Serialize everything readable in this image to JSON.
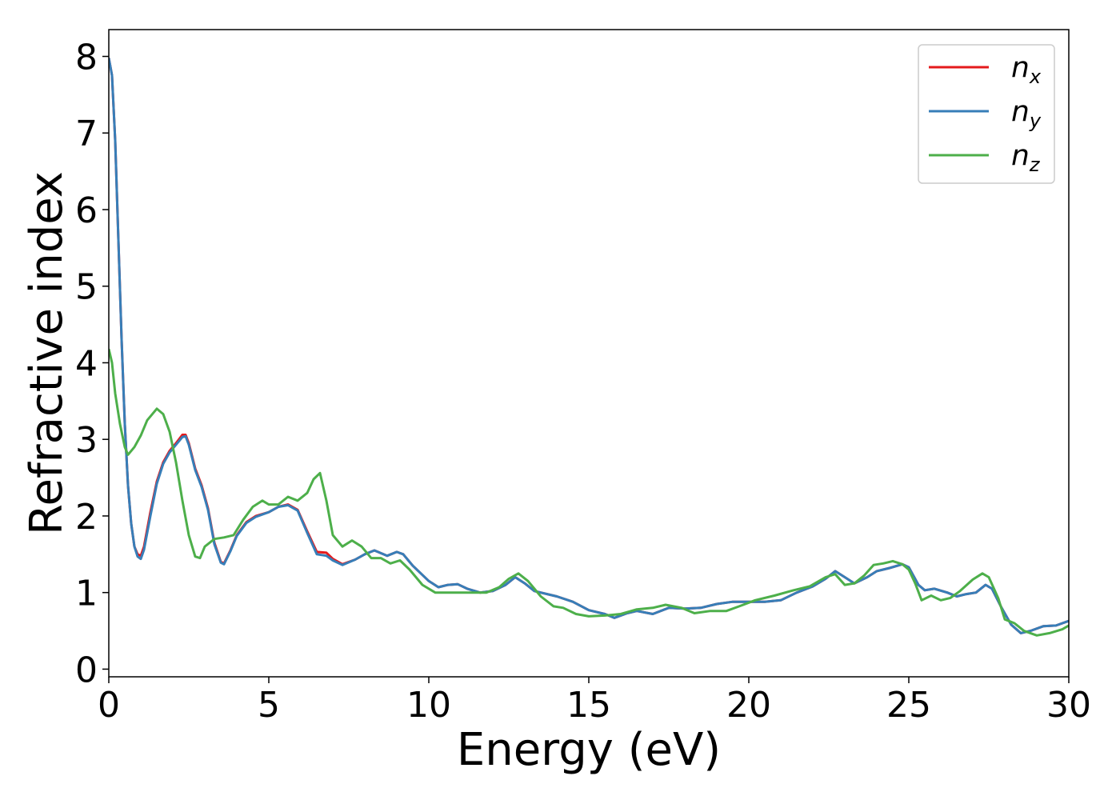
{
  "chart_data": {
    "type": "line",
    "xlabel": "Energy (eV)",
    "ylabel": "Refractive index",
    "xlim": [
      0,
      30
    ],
    "ylim": [
      -0.1,
      8.35
    ],
    "xticks": [
      0,
      5,
      10,
      15,
      20,
      25,
      30
    ],
    "xtick_labels": [
      "0",
      "5",
      "10",
      "15",
      "20",
      "25",
      "30"
    ],
    "yticks": [
      0,
      1,
      2,
      3,
      4,
      5,
      6,
      7,
      8
    ],
    "ytick_labels": [
      "0",
      "1",
      "2",
      "3",
      "4",
      "5",
      "6",
      "7",
      "8"
    ],
    "grid": false,
    "legend_position": "top-right",
    "series": [
      {
        "name": "n",
        "subscript": "x",
        "color": "#e41a1c",
        "points": [
          [
            0,
            7.98
          ],
          [
            0.1,
            7.75
          ],
          [
            0.2,
            6.9
          ],
          [
            0.3,
            5.6
          ],
          [
            0.4,
            4.3
          ],
          [
            0.5,
            3.2
          ],
          [
            0.6,
            2.4
          ],
          [
            0.7,
            1.9
          ],
          [
            0.8,
            1.6
          ],
          [
            0.9,
            1.5
          ],
          [
            1.0,
            1.48
          ],
          [
            1.1,
            1.6
          ],
          [
            1.3,
            2.05
          ],
          [
            1.5,
            2.45
          ],
          [
            1.7,
            2.7
          ],
          [
            1.9,
            2.85
          ],
          [
            2.1,
            2.95
          ],
          [
            2.3,
            3.06
          ],
          [
            2.4,
            3.06
          ],
          [
            2.5,
            2.95
          ],
          [
            2.7,
            2.62
          ],
          [
            2.9,
            2.4
          ],
          [
            3.1,
            2.1
          ],
          [
            3.3,
            1.65
          ],
          [
            3.5,
            1.4
          ],
          [
            3.6,
            1.38
          ],
          [
            3.8,
            1.55
          ],
          [
            4.0,
            1.75
          ],
          [
            4.3,
            1.92
          ],
          [
            4.6,
            2.0
          ],
          [
            5.0,
            2.05
          ],
          [
            5.3,
            2.12
          ],
          [
            5.6,
            2.15
          ],
          [
            5.9,
            2.08
          ],
          [
            6.2,
            1.8
          ],
          [
            6.5,
            1.53
          ],
          [
            6.8,
            1.52
          ],
          [
            7.0,
            1.44
          ],
          [
            7.3,
            1.37
          ],
          [
            7.7,
            1.43
          ],
          [
            8.0,
            1.5
          ],
          [
            8.3,
            1.55
          ],
          [
            8.7,
            1.48
          ],
          [
            9.0,
            1.53
          ],
          [
            9.2,
            1.5
          ],
          [
            9.5,
            1.35
          ],
          [
            10.0,
            1.15
          ],
          [
            10.3,
            1.07
          ],
          [
            10.6,
            1.1
          ],
          [
            10.9,
            1.11
          ],
          [
            11.2,
            1.05
          ],
          [
            11.6,
            1.0
          ],
          [
            12.0,
            1.02
          ],
          [
            12.4,
            1.1
          ],
          [
            12.7,
            1.2
          ],
          [
            13.0,
            1.12
          ],
          [
            13.3,
            1.02
          ],
          [
            14.0,
            0.95
          ],
          [
            14.5,
            0.88
          ],
          [
            15.0,
            0.77
          ],
          [
            15.5,
            0.72
          ],
          [
            15.8,
            0.67
          ],
          [
            16.2,
            0.73
          ],
          [
            16.5,
            0.76
          ],
          [
            17.0,
            0.72
          ],
          [
            17.5,
            0.8
          ],
          [
            18.0,
            0.79
          ],
          [
            18.5,
            0.8
          ],
          [
            19.0,
            0.85
          ],
          [
            19.5,
            0.88
          ],
          [
            20.0,
            0.88
          ],
          [
            20.5,
            0.88
          ],
          [
            21.0,
            0.9
          ],
          [
            21.5,
            1.0
          ],
          [
            22.0,
            1.08
          ],
          [
            22.4,
            1.18
          ],
          [
            22.7,
            1.28
          ],
          [
            23.0,
            1.2
          ],
          [
            23.3,
            1.12
          ],
          [
            23.7,
            1.2
          ],
          [
            24.0,
            1.28
          ],
          [
            24.4,
            1.32
          ],
          [
            24.8,
            1.37
          ],
          [
            25.0,
            1.33
          ],
          [
            25.3,
            1.1
          ],
          [
            25.5,
            1.03
          ],
          [
            25.8,
            1.05
          ],
          [
            26.2,
            1.0
          ],
          [
            26.5,
            0.95
          ],
          [
            26.8,
            0.98
          ],
          [
            27.1,
            1.0
          ],
          [
            27.4,
            1.1
          ],
          [
            27.6,
            1.05
          ],
          [
            27.9,
            0.8
          ],
          [
            28.2,
            0.58
          ],
          [
            28.5,
            0.47
          ],
          [
            28.8,
            0.5
          ],
          [
            29.2,
            0.56
          ],
          [
            29.6,
            0.57
          ],
          [
            30.0,
            0.63
          ]
        ]
      },
      {
        "name": "n",
        "subscript": "y",
        "color": "#377eb8",
        "points": [
          [
            0,
            7.98
          ],
          [
            0.1,
            7.75
          ],
          [
            0.2,
            6.9
          ],
          [
            0.3,
            5.6
          ],
          [
            0.4,
            4.3
          ],
          [
            0.5,
            3.2
          ],
          [
            0.6,
            2.4
          ],
          [
            0.7,
            1.9
          ],
          [
            0.8,
            1.6
          ],
          [
            0.9,
            1.47
          ],
          [
            1.0,
            1.44
          ],
          [
            1.1,
            1.56
          ],
          [
            1.3,
            2.0
          ],
          [
            1.5,
            2.42
          ],
          [
            1.7,
            2.68
          ],
          [
            1.9,
            2.83
          ],
          [
            2.1,
            2.93
          ],
          [
            2.3,
            3.03
          ],
          [
            2.4,
            3.04
          ],
          [
            2.5,
            2.93
          ],
          [
            2.7,
            2.6
          ],
          [
            2.9,
            2.38
          ],
          [
            3.1,
            2.08
          ],
          [
            3.3,
            1.63
          ],
          [
            3.5,
            1.39
          ],
          [
            3.6,
            1.37
          ],
          [
            3.8,
            1.54
          ],
          [
            4.0,
            1.74
          ],
          [
            4.3,
            1.91
          ],
          [
            4.6,
            1.99
          ],
          [
            5.0,
            2.05
          ],
          [
            5.3,
            2.12
          ],
          [
            5.6,
            2.14
          ],
          [
            5.9,
            2.07
          ],
          [
            6.2,
            1.78
          ],
          [
            6.5,
            1.5
          ],
          [
            6.8,
            1.48
          ],
          [
            7.0,
            1.42
          ],
          [
            7.3,
            1.36
          ],
          [
            7.7,
            1.43
          ],
          [
            8.0,
            1.5
          ],
          [
            8.3,
            1.55
          ],
          [
            8.7,
            1.48
          ],
          [
            9.0,
            1.53
          ],
          [
            9.2,
            1.5
          ],
          [
            9.5,
            1.35
          ],
          [
            10.0,
            1.15
          ],
          [
            10.3,
            1.07
          ],
          [
            10.6,
            1.1
          ],
          [
            10.9,
            1.11
          ],
          [
            11.2,
            1.05
          ],
          [
            11.6,
            1.0
          ],
          [
            12.0,
            1.02
          ],
          [
            12.4,
            1.1
          ],
          [
            12.7,
            1.2
          ],
          [
            13.0,
            1.12
          ],
          [
            13.3,
            1.02
          ],
          [
            14.0,
            0.95
          ],
          [
            14.5,
            0.88
          ],
          [
            15.0,
            0.77
          ],
          [
            15.5,
            0.72
          ],
          [
            15.8,
            0.67
          ],
          [
            16.2,
            0.73
          ],
          [
            16.5,
            0.76
          ],
          [
            17.0,
            0.72
          ],
          [
            17.5,
            0.8
          ],
          [
            18.0,
            0.79
          ],
          [
            18.5,
            0.8
          ],
          [
            19.0,
            0.85
          ],
          [
            19.5,
            0.88
          ],
          [
            20.0,
            0.88
          ],
          [
            20.5,
            0.88
          ],
          [
            21.0,
            0.9
          ],
          [
            21.5,
            1.0
          ],
          [
            22.0,
            1.08
          ],
          [
            22.4,
            1.18
          ],
          [
            22.7,
            1.28
          ],
          [
            23.0,
            1.2
          ],
          [
            23.3,
            1.12
          ],
          [
            23.7,
            1.2
          ],
          [
            24.0,
            1.28
          ],
          [
            24.4,
            1.32
          ],
          [
            24.8,
            1.37
          ],
          [
            25.0,
            1.33
          ],
          [
            25.3,
            1.1
          ],
          [
            25.5,
            1.03
          ],
          [
            25.8,
            1.05
          ],
          [
            26.2,
            1.0
          ],
          [
            26.5,
            0.95
          ],
          [
            26.8,
            0.98
          ],
          [
            27.1,
            1.0
          ],
          [
            27.4,
            1.1
          ],
          [
            27.6,
            1.05
          ],
          [
            27.9,
            0.8
          ],
          [
            28.2,
            0.58
          ],
          [
            28.5,
            0.47
          ],
          [
            28.8,
            0.5
          ],
          [
            29.2,
            0.56
          ],
          [
            29.6,
            0.57
          ],
          [
            30.0,
            0.63
          ]
        ]
      },
      {
        "name": "n",
        "subscript": "z",
        "color": "#4daf4a",
        "points": [
          [
            0,
            4.18
          ],
          [
            0.1,
            4.0
          ],
          [
            0.2,
            3.6
          ],
          [
            0.35,
            3.2
          ],
          [
            0.5,
            2.9
          ],
          [
            0.6,
            2.8
          ],
          [
            0.8,
            2.9
          ],
          [
            1.0,
            3.05
          ],
          [
            1.2,
            3.25
          ],
          [
            1.5,
            3.4
          ],
          [
            1.7,
            3.33
          ],
          [
            1.9,
            3.1
          ],
          [
            2.1,
            2.7
          ],
          [
            2.3,
            2.2
          ],
          [
            2.5,
            1.75
          ],
          [
            2.7,
            1.47
          ],
          [
            2.85,
            1.45
          ],
          [
            3.0,
            1.6
          ],
          [
            3.3,
            1.7
          ],
          [
            3.6,
            1.72
          ],
          [
            3.9,
            1.75
          ],
          [
            4.2,
            1.95
          ],
          [
            4.5,
            2.12
          ],
          [
            4.8,
            2.2
          ],
          [
            5.0,
            2.15
          ],
          [
            5.3,
            2.15
          ],
          [
            5.6,
            2.25
          ],
          [
            5.9,
            2.2
          ],
          [
            6.2,
            2.3
          ],
          [
            6.4,
            2.48
          ],
          [
            6.6,
            2.56
          ],
          [
            6.8,
            2.2
          ],
          [
            7.0,
            1.75
          ],
          [
            7.3,
            1.6
          ],
          [
            7.6,
            1.68
          ],
          [
            7.9,
            1.6
          ],
          [
            8.2,
            1.45
          ],
          [
            8.5,
            1.45
          ],
          [
            8.8,
            1.38
          ],
          [
            9.1,
            1.42
          ],
          [
            9.4,
            1.3
          ],
          [
            9.8,
            1.1
          ],
          [
            10.2,
            1.0
          ],
          [
            10.8,
            1.0
          ],
          [
            11.3,
            1.0
          ],
          [
            11.8,
            1.0
          ],
          [
            12.2,
            1.07
          ],
          [
            12.5,
            1.18
          ],
          [
            12.8,
            1.25
          ],
          [
            13.1,
            1.15
          ],
          [
            13.5,
            0.95
          ],
          [
            13.9,
            0.82
          ],
          [
            14.2,
            0.8
          ],
          [
            14.6,
            0.72
          ],
          [
            15.0,
            0.69
          ],
          [
            15.5,
            0.7
          ],
          [
            16.0,
            0.72
          ],
          [
            16.5,
            0.78
          ],
          [
            17.0,
            0.8
          ],
          [
            17.4,
            0.84
          ],
          [
            17.9,
            0.8
          ],
          [
            18.3,
            0.73
          ],
          [
            18.8,
            0.76
          ],
          [
            19.3,
            0.76
          ],
          [
            19.7,
            0.82
          ],
          [
            20.2,
            0.9
          ],
          [
            20.8,
            0.96
          ],
          [
            21.4,
            1.03
          ],
          [
            21.9,
            1.08
          ],
          [
            22.4,
            1.2
          ],
          [
            22.7,
            1.24
          ],
          [
            23.0,
            1.1
          ],
          [
            23.3,
            1.12
          ],
          [
            23.6,
            1.22
          ],
          [
            23.9,
            1.36
          ],
          [
            24.2,
            1.38
          ],
          [
            24.5,
            1.41
          ],
          [
            24.8,
            1.37
          ],
          [
            25.0,
            1.3
          ],
          [
            25.2,
            1.12
          ],
          [
            25.4,
            0.9
          ],
          [
            25.7,
            0.96
          ],
          [
            26.0,
            0.9
          ],
          [
            26.3,
            0.93
          ],
          [
            26.6,
            1.02
          ],
          [
            27.0,
            1.17
          ],
          [
            27.3,
            1.25
          ],
          [
            27.5,
            1.2
          ],
          [
            27.8,
            0.92
          ],
          [
            28.0,
            0.65
          ],
          [
            28.3,
            0.6
          ],
          [
            28.6,
            0.5
          ],
          [
            29.0,
            0.44
          ],
          [
            29.4,
            0.47
          ],
          [
            29.8,
            0.52
          ],
          [
            30.0,
            0.57
          ]
        ]
      }
    ]
  }
}
